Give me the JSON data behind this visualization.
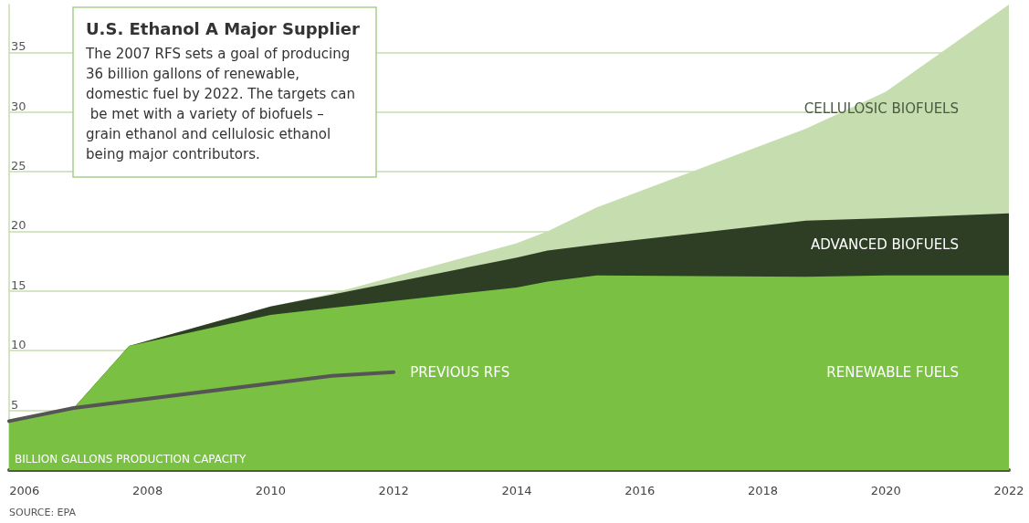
{
  "chart_data": {
    "type": "area",
    "stacked": true,
    "title": "U.S. Ethanol A Major Supplier",
    "subtitle": "The 2007 RFS sets a goal of producing 36 billion gallons of renewable, domestic fuel by 2022. The targets can be met with a variety of biofuels – grain ethanol and cellulosic ethanol being major contributors.",
    "ylabel": "BILLION GALLONS PRODUCTION CAPACITY",
    "annotations": [
      "SOURCE: EPA"
    ],
    "x": [
      2005.75,
      2006.8,
      2007.7,
      2010,
      2011,
      2014,
      2014.5,
      2015.3,
      2018.7,
      2020,
      2022
    ],
    "series": [
      {
        "name": "RENEWABLE FUELS",
        "color": "#7ac143",
        "values": [
          4.0,
          5.2,
          10.4,
          13.0,
          13.6,
          15.3,
          15.8,
          16.3,
          16.2,
          16.3,
          16.3
        ]
      },
      {
        "name": "ADVANCED BIOFUELS",
        "color": "#2d3e25",
        "values": [
          0,
          0,
          0,
          0.7,
          1.1,
          2.5,
          2.6,
          2.6,
          4.7,
          4.8,
          5.2
        ]
      },
      {
        "name": "CELLULOSIC BIOFUELS",
        "color": "#c6ddb0",
        "values": [
          0,
          0,
          0,
          0,
          0.1,
          1.2,
          1.6,
          3.1,
          7.7,
          10.6,
          17.5
        ]
      },
      {
        "name": "PREVIOUS RFS",
        "type": "line",
        "color": "#555555",
        "x": [
          2005.75,
          2006.8,
          2011,
          2012
        ],
        "values": [
          4.1,
          5.2,
          7.9,
          8.2
        ]
      }
    ],
    "xlim": [
      2005.75,
      2022
    ],
    "xticks": [
      2006,
      2008,
      2010,
      2012,
      2014,
      2016,
      2018,
      2020,
      2022
    ],
    "ylim": [
      0,
      39
    ],
    "yticks": [
      5,
      10,
      15,
      20,
      25,
      30,
      35
    ],
    "grid": "y",
    "legend": false,
    "marker": "none",
    "line_style": "solid"
  }
}
